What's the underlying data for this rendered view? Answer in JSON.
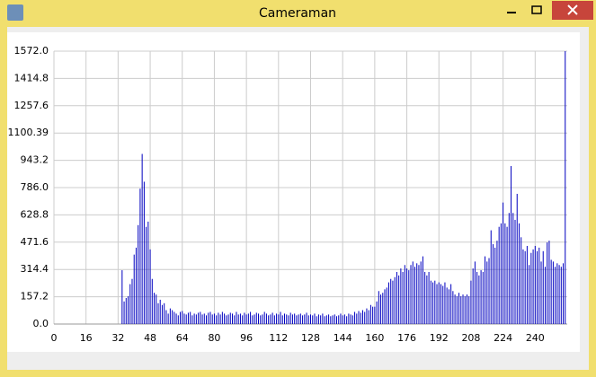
{
  "window": {
    "title": "Cameraman"
  },
  "chart_data": {
    "type": "bar",
    "color": "#0000c0",
    "grid": true,
    "xlim": [
      0,
      256
    ],
    "xticks": [
      0,
      16,
      32,
      48,
      64,
      80,
      96,
      112,
      128,
      144,
      160,
      176,
      192,
      208,
      224,
      240
    ],
    "ylim": [
      0,
      1572
    ],
    "yticks": [
      {
        "value": 0,
        "label": "0.0"
      },
      157.2,
      314.4,
      471.6,
      628.8,
      {
        "value": 786,
        "label": "786.0"
      },
      943.2,
      1100.39,
      1257.6,
      1414.8,
      {
        "value": 1572,
        "label": "1572.0"
      }
    ],
    "x": [
      0,
      1,
      2,
      3,
      4,
      5,
      6,
      7,
      8,
      9,
      10,
      11,
      12,
      13,
      14,
      15,
      16,
      17,
      18,
      19,
      20,
      21,
      22,
      23,
      24,
      25,
      26,
      27,
      28,
      29,
      30,
      31,
      32,
      33,
      34,
      35,
      36,
      37,
      38,
      39,
      40,
      41,
      42,
      43,
      44,
      45,
      46,
      47,
      48,
      49,
      50,
      51,
      52,
      53,
      54,
      55,
      56,
      57,
      58,
      59,
      60,
      61,
      62,
      63,
      64,
      65,
      66,
      67,
      68,
      69,
      70,
      71,
      72,
      73,
      74,
      75,
      76,
      77,
      78,
      79,
      80,
      81,
      82,
      83,
      84,
      85,
      86,
      87,
      88,
      89,
      90,
      91,
      92,
      93,
      94,
      95,
      96,
      97,
      98,
      99,
      100,
      101,
      102,
      103,
      104,
      105,
      106,
      107,
      108,
      109,
      110,
      111,
      112,
      113,
      114,
      115,
      116,
      117,
      118,
      119,
      120,
      121,
      122,
      123,
      124,
      125,
      126,
      127,
      128,
      129,
      130,
      131,
      132,
      133,
      134,
      135,
      136,
      137,
      138,
      139,
      140,
      141,
      142,
      143,
      144,
      145,
      146,
      147,
      148,
      149,
      150,
      151,
      152,
      153,
      154,
      155,
      156,
      157,
      158,
      159,
      160,
      161,
      162,
      163,
      164,
      165,
      166,
      167,
      168,
      169,
      170,
      171,
      172,
      173,
      174,
      175,
      176,
      177,
      178,
      179,
      180,
      181,
      182,
      183,
      184,
      185,
      186,
      187,
      188,
      189,
      190,
      191,
      192,
      193,
      194,
      195,
      196,
      197,
      198,
      199,
      200,
      201,
      202,
      203,
      204,
      205,
      206,
      207,
      208,
      209,
      210,
      211,
      212,
      213,
      214,
      215,
      216,
      217,
      218,
      219,
      220,
      221,
      222,
      223,
      224,
      225,
      226,
      227,
      228,
      229,
      230,
      231,
      232,
      233,
      234,
      235,
      236,
      237,
      238,
      239,
      240,
      241,
      242,
      243,
      244,
      245,
      246,
      247,
      248,
      249,
      250,
      251,
      252,
      253,
      254,
      255
    ],
    "values": [
      0,
      0,
      0,
      0,
      0,
      0,
      0,
      0,
      0,
      0,
      0,
      0,
      0,
      0,
      0,
      0,
      0,
      0,
      0,
      0,
      0,
      0,
      0,
      0,
      0,
      0,
      0,
      0,
      0,
      0,
      0,
      0,
      0,
      0,
      310,
      130,
      150,
      160,
      230,
      260,
      400,
      440,
      570,
      780,
      980,
      820,
      560,
      590,
      430,
      260,
      180,
      170,
      120,
      140,
      110,
      120,
      80,
      60,
      90,
      80,
      70,
      60,
      50,
      70,
      75,
      60,
      55,
      65,
      70,
      50,
      60,
      55,
      65,
      70,
      55,
      60,
      50,
      65,
      70,
      55,
      60,
      50,
      65,
      55,
      70,
      60,
      50,
      55,
      65,
      60,
      50,
      70,
      55,
      60,
      50,
      65,
      55,
      60,
      70,
      50,
      55,
      65,
      60,
      50,
      55,
      70,
      60,
      50,
      55,
      65,
      50,
      60,
      55,
      70,
      50,
      60,
      55,
      50,
      65,
      55,
      60,
      50,
      55,
      60,
      50,
      55,
      65,
      50,
      55,
      50,
      60,
      45,
      55,
      50,
      60,
      45,
      50,
      55,
      45,
      50,
      55,
      45,
      50,
      60,
      50,
      55,
      45,
      60,
      55,
      50,
      70,
      60,
      75,
      65,
      80,
      70,
      90,
      80,
      110,
      100,
      100,
      130,
      190,
      170,
      180,
      200,
      210,
      240,
      260,
      250,
      270,
      300,
      280,
      320,
      300,
      340,
      320,
      310,
      340,
      360,
      330,
      350,
      340,
      360,
      390,
      300,
      280,
      300,
      250,
      240,
      250,
      230,
      240,
      230,
      220,
      240,
      210,
      200,
      230,
      190,
      170,
      160,
      180,
      160,
      170,
      160,
      170,
      160,
      250,
      320,
      360,
      300,
      280,
      310,
      300,
      390,
      360,
      380,
      540,
      460,
      440,
      480,
      560,
      580,
      700,
      580,
      560,
      640,
      910,
      640,
      600,
      750,
      580,
      500,
      430,
      420,
      450,
      340,
      410,
      430,
      450,
      420,
      440,
      360,
      420,
      330,
      470,
      480,
      370,
      360,
      330,
      350,
      340,
      330,
      350,
      1572
    ]
  }
}
